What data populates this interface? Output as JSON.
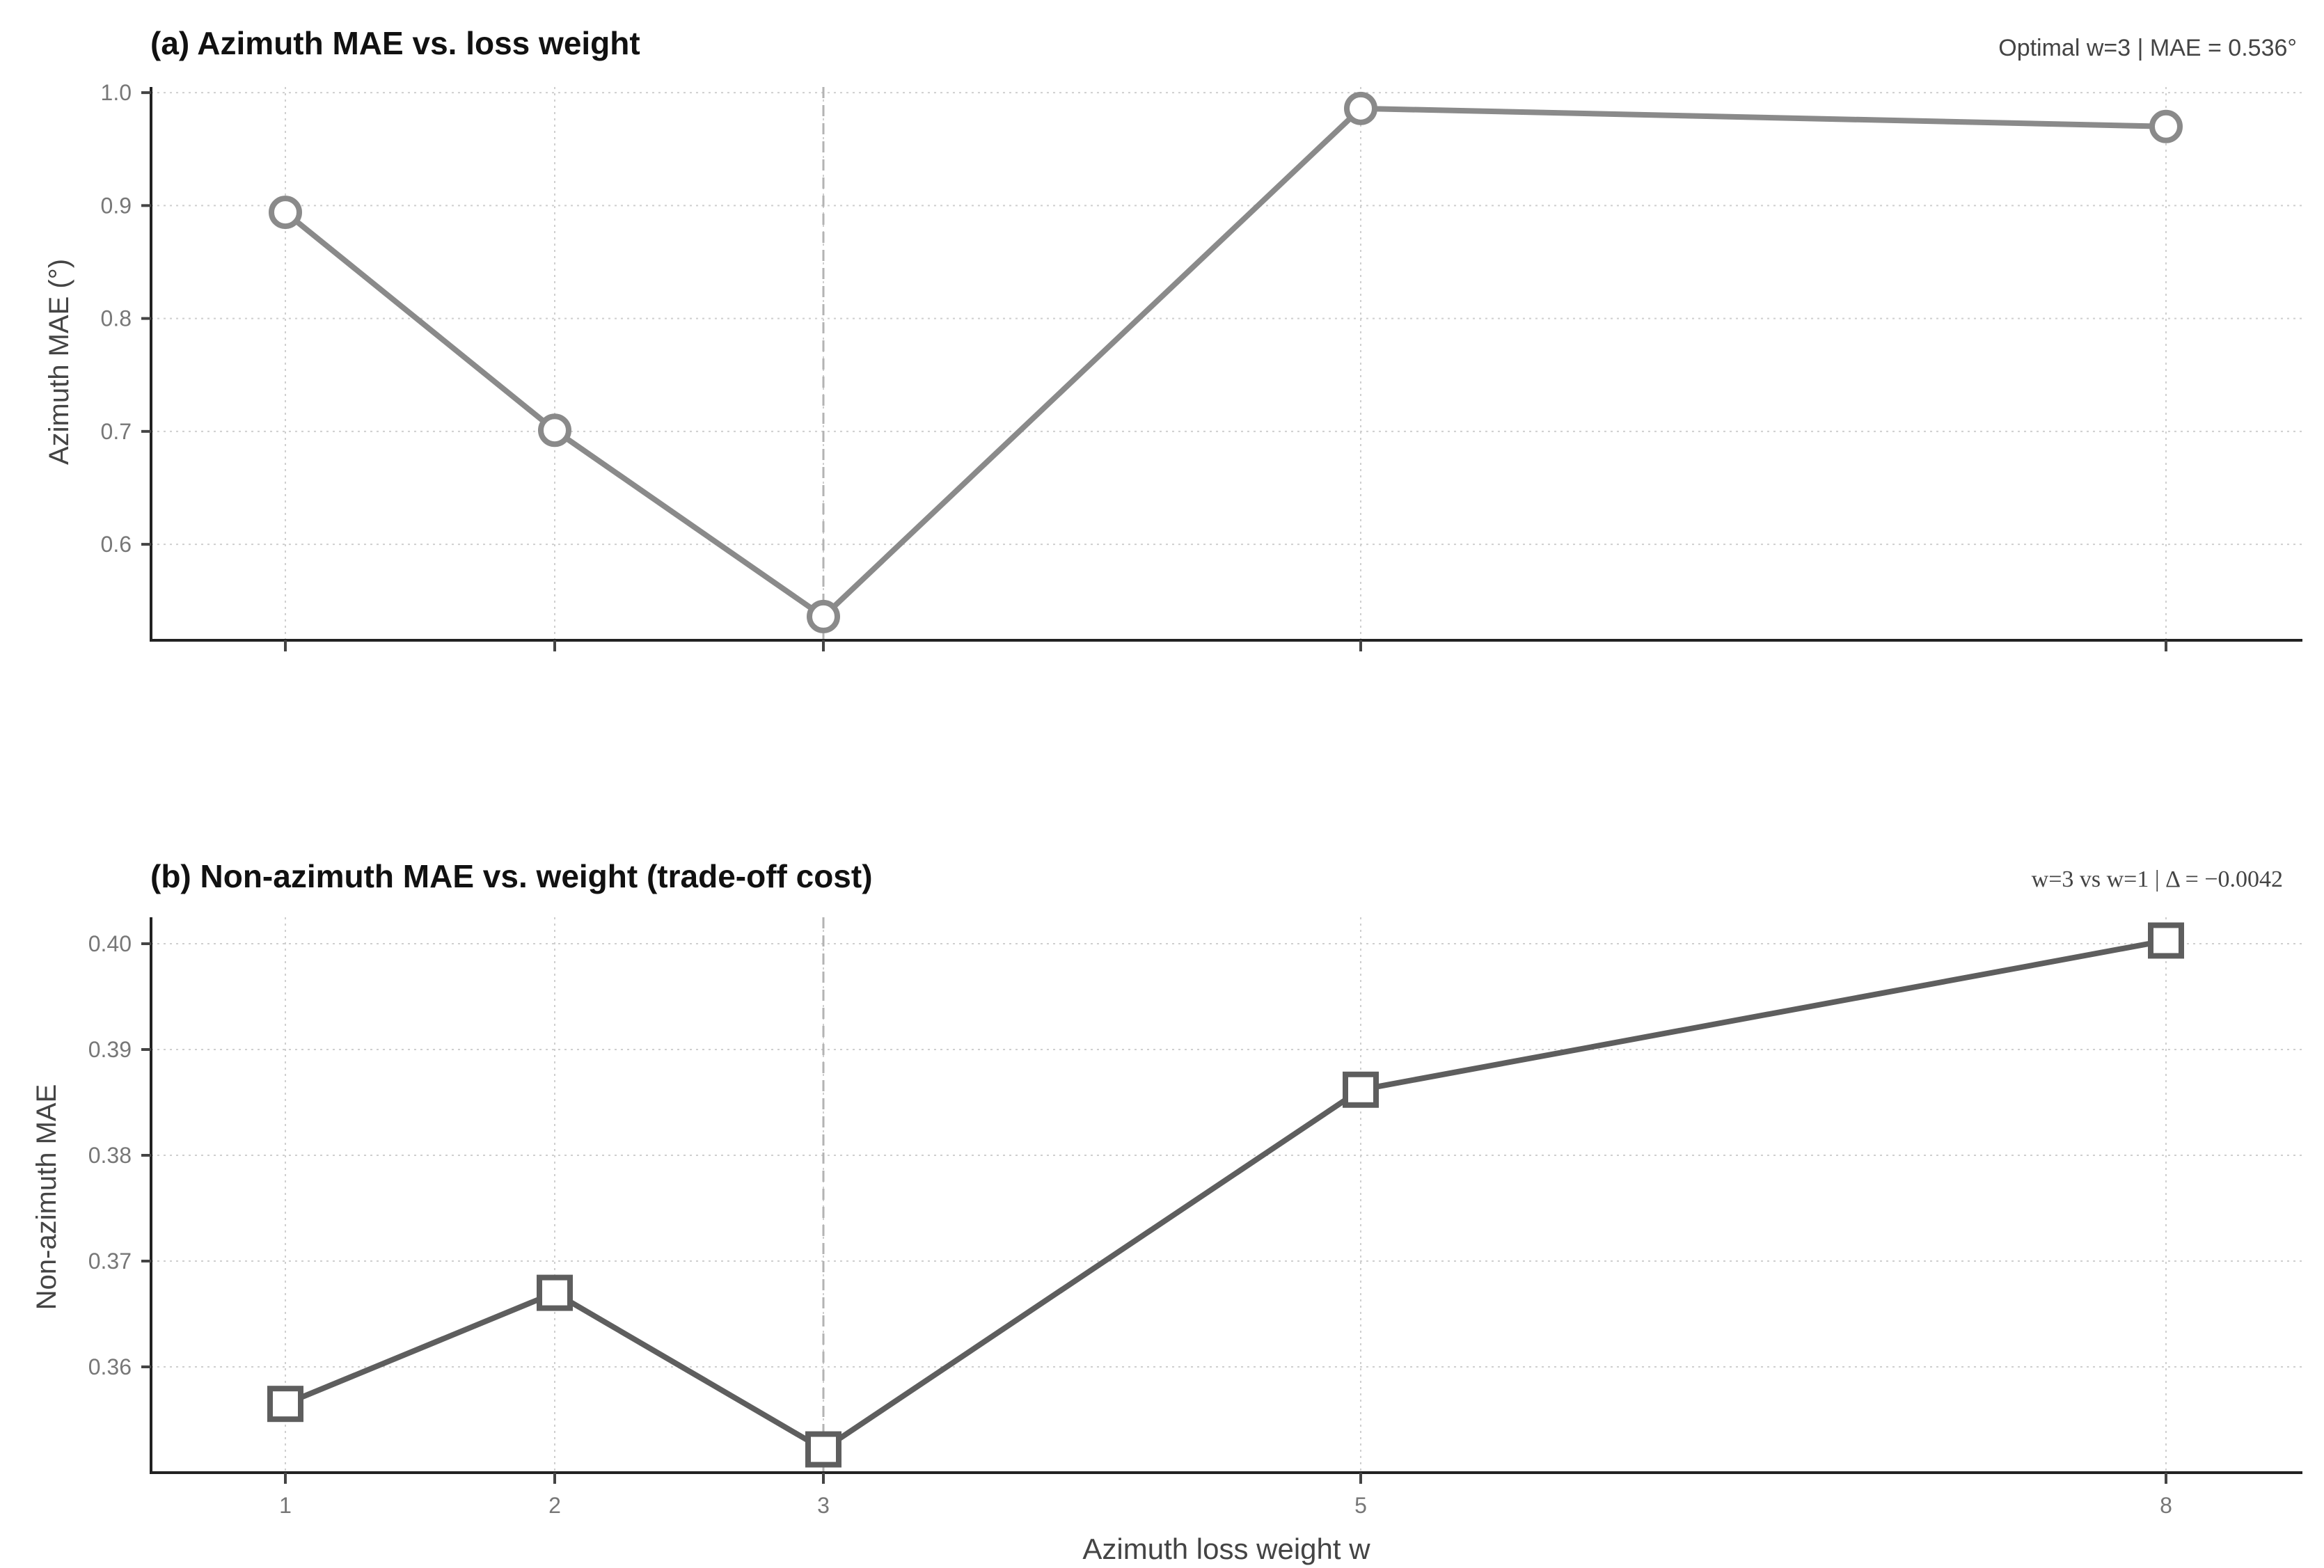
{
  "chart_data": [
    {
      "type": "line",
      "title": "(a)  Azimuth MAE vs. loss weight",
      "annotation": "Optimal w=3  |  MAE = 0.536°",
      "xlabel": "",
      "ylabel": "Azimuth MAE (°)",
      "x": [
        1,
        2,
        3,
        5,
        8
      ],
      "x_tick_labels_shown": false,
      "ylim": [
        0.515,
        1.005
      ],
      "yticks": [
        0.6,
        0.7,
        0.8,
        0.9,
        1.0
      ],
      "ytick_labels": [
        "0.6",
        "0.7",
        "0.8",
        "0.9",
        "1.0"
      ],
      "marker": "circle",
      "color": "#8a8a8a",
      "highlight_x": 3,
      "grid": true,
      "series": [
        {
          "values": [
            0.894,
            0.701,
            0.536,
            0.986,
            0.97
          ]
        }
      ]
    },
    {
      "type": "line",
      "title": "(b)  Non-azimuth MAE vs. weight (trade-off cost)",
      "annotation": "w=3 vs w=1  |  Δ = −0.0042",
      "xlabel": "Azimuth loss weight  w",
      "ylabel": "Non-azimuth MAE",
      "x": [
        1,
        2,
        3,
        5,
        8
      ],
      "xtick_labels": [
        "1",
        "2",
        "3",
        "5",
        "8"
      ],
      "ylim": [
        0.35,
        0.4025
      ],
      "yticks": [
        0.36,
        0.37,
        0.38,
        0.39,
        0.4
      ],
      "ytick_labels": [
        "0.36",
        "0.37",
        "0.38",
        "0.39",
        "0.40"
      ],
      "marker": "square",
      "color": "#5e5e5e",
      "highlight_x": 3,
      "grid": true,
      "series": [
        {
          "values": [
            0.3565,
            0.367,
            0.3522,
            0.3862,
            0.4003
          ]
        }
      ]
    }
  ]
}
